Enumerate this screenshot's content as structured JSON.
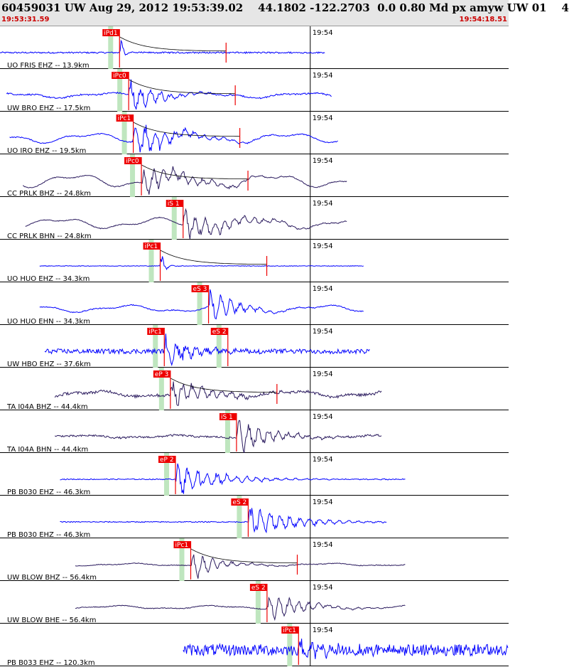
{
  "header": {
    "title": "60459031 UW Aug 29, 2012 19:53:39.02    44.1802 -122.2703  0.0 0.80 Md px amyw UW 01    4",
    "time_start": "19:53:31.59",
    "time_end": "19:54:18.51"
  },
  "colors": {
    "trace_blue": "#0000ff",
    "trace_dark": "#2a1a5e",
    "pick_box": "#ee0000",
    "window": "#bfe6bf",
    "coda": "#000000"
  },
  "chart_data": {
    "type": "line",
    "title": "60459031 UW Aug 29, 2012 19:53:39.02    44.1802 -122.2703  0.0 0.80 Md px amyw UW 01    4",
    "xlim": [
      "19:53:31.59",
      "19:54:18.51"
    ],
    "minute_label": "19:54",
    "traces": [
      {
        "label": "UO FRIS EHZ -- 13.9km",
        "color": "blue",
        "start": 0.0,
        "end": 0.64,
        "noise": 0.08,
        "burst_amp": 0.95,
        "burst_decay": 0.05,
        "osc": 0,
        "coda": true,
        "picks": [
          {
            "label": "iPd1",
            "x": 0.235
          }
        ]
      },
      {
        "label": "UW BRO EHZ -- 17.5km",
        "color": "blue",
        "start": 0.013,
        "end": 0.653,
        "noise": 0.08,
        "burst_amp": 0.9,
        "burst_decay": 0.35,
        "osc": 0.3,
        "coda": true,
        "picks": [
          {
            "label": "iPc0",
            "x": 0.253
          }
        ]
      },
      {
        "label": "UO IRO EHZ -- 19.5km",
        "color": "blue",
        "start": 0.019,
        "end": 0.665,
        "noise": 0.05,
        "burst_amp": 0.9,
        "burst_decay": 0.5,
        "osc": 0.55,
        "coda": true,
        "picks": [
          {
            "label": "iPc1",
            "x": 0.262
          }
        ]
      },
      {
        "label": "CC PRLK BHZ -- 24.8km",
        "color": "dark",
        "start": 0.045,
        "end": 0.683,
        "noise": 0.04,
        "burst_amp": 0.7,
        "burst_decay": 0.6,
        "osc": 0.75,
        "coda": true,
        "picks": [
          {
            "label": "iPc0",
            "x": 0.278
          }
        ]
      },
      {
        "label": "CC PRLK BHN -- 24.8km",
        "color": "dark",
        "start": 0.05,
        "end": 0.683,
        "noise": 0.04,
        "burst_amp": 0.75,
        "burst_decay": 0.6,
        "osc": 0.6,
        "coda": false,
        "picks": [
          {
            "label": "iS 1",
            "x": 0.36
          }
        ]
      },
      {
        "label": "UO HUO EHZ -- 34.3km",
        "color": "blue",
        "start": 0.078,
        "end": 0.715,
        "noise": 0.03,
        "burst_amp": 0.85,
        "burst_decay": 0.06,
        "osc": 0,
        "coda": true,
        "picks": [
          {
            "label": "iPc1",
            "x": 0.315
          }
        ]
      },
      {
        "label": "UO HUO EHN -- 34.3km",
        "color": "blue",
        "start": 0.078,
        "end": 0.715,
        "noise": 0.05,
        "burst_amp": 0.9,
        "burst_decay": 0.35,
        "osc": 0.4,
        "coda": false,
        "picks": [
          {
            "label": "eS 3",
            "x": 0.41
          }
        ]
      },
      {
        "label": "UW HBO EHZ -- 37.6km",
        "color": "blue",
        "start": 0.088,
        "end": 0.728,
        "noise": 0.25,
        "burst_amp": 0.75,
        "burst_decay": 0.4,
        "osc": 0,
        "coda": false,
        "picks": [
          {
            "label": "iPc1",
            "x": 0.323
          },
          {
            "label": "eS 2",
            "x": 0.448
          }
        ]
      },
      {
        "label": "TA I04A BHZ -- 44.4km",
        "color": "dark",
        "start": 0.108,
        "end": 0.75,
        "noise": 0.15,
        "burst_amp": 0.75,
        "burst_decay": 0.5,
        "osc": 0.35,
        "coda": true,
        "picks": [
          {
            "label": "eP 3",
            "x": 0.335
          }
        ]
      },
      {
        "label": "TA I04A BHN -- 44.4km",
        "color": "dark",
        "start": 0.108,
        "end": 0.75,
        "noise": 0.1,
        "burst_amp": 0.85,
        "burst_decay": 0.45,
        "osc": 0.15,
        "coda": false,
        "picks": [
          {
            "label": "iS 1",
            "x": 0.465
          }
        ]
      },
      {
        "label": "PB B030 EHZ -- 46.3km",
        "color": "blue",
        "start": 0.118,
        "end": 0.797,
        "noise": 0.05,
        "burst_amp": 0.9,
        "burst_decay": 0.55,
        "osc": 0,
        "coda": false,
        "picks": [
          {
            "label": "eP 2",
            "x": 0.345
          }
        ]
      },
      {
        "label": "PB B030 EHZ -- 46.3km",
        "color": "blue",
        "start": 0.118,
        "end": 0.76,
        "noise": 0.05,
        "burst_amp": 0.9,
        "burst_decay": 0.55,
        "osc": 0,
        "coda": false,
        "picks": [
          {
            "label": "eS 2",
            "x": 0.488
          }
        ]
      },
      {
        "label": "UW BLOW BHZ -- 56.4km",
        "color": "dark",
        "start": 0.148,
        "end": 0.797,
        "noise": 0.04,
        "burst_amp": 0.7,
        "burst_decay": 0.35,
        "osc": 0.15,
        "coda": true,
        "picks": [
          {
            "label": "iPc1",
            "x": 0.375
          }
        ]
      },
      {
        "label": "UW BLOW BHE -- 56.4km",
        "color": "dark",
        "start": 0.148,
        "end": 0.797,
        "noise": 0.04,
        "burst_amp": 0.8,
        "burst_decay": 0.45,
        "osc": 0.2,
        "coda": false,
        "picks": [
          {
            "label": "eS 2",
            "x": 0.525
          }
        ]
      },
      {
        "label": "PB B033 EHZ -- 120.3km",
        "color": "blue",
        "start": 0.36,
        "end": 1.0,
        "noise": 0.6,
        "burst_amp": 0.55,
        "burst_decay": 0.5,
        "osc": 0,
        "coda": false,
        "picks": [
          {
            "label": "iPc1",
            "x": 0.587
          }
        ]
      }
    ]
  }
}
